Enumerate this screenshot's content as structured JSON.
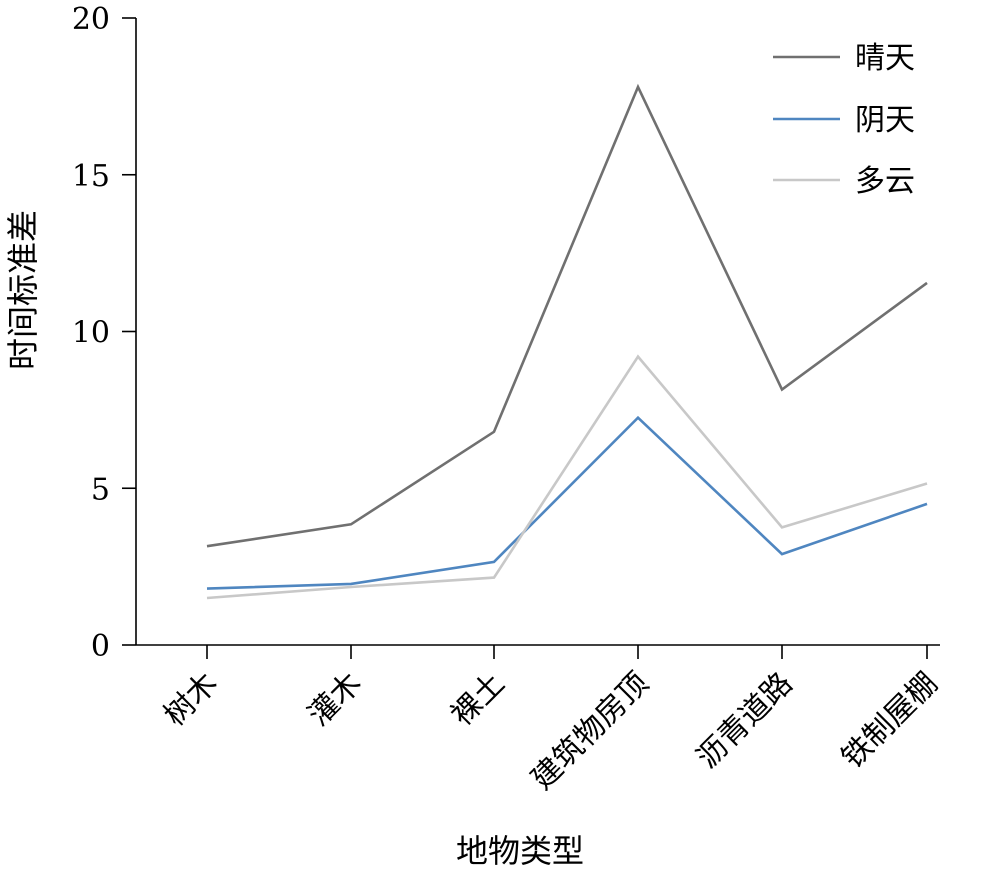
{
  "chart_data": {
    "type": "line",
    "xlabel": "地物类型",
    "ylabel": "时间标准差",
    "ylim": [
      0,
      20
    ],
    "yticks": [
      0,
      5,
      10,
      15,
      20
    ],
    "categories": [
      "树木",
      "灌木",
      "裸土",
      "建筑物房顶",
      "沥青道路",
      "铁制屋棚"
    ],
    "legend_position": "top-right",
    "grid": false,
    "series": [
      {
        "name": "晴天",
        "color": "#707070",
        "values": [
          3.15,
          3.85,
          6.8,
          17.8,
          8.15,
          11.55
        ]
      },
      {
        "name": "阴天",
        "color": "#4f86c0",
        "values": [
          1.8,
          1.95,
          2.65,
          7.25,
          2.9,
          4.5
        ]
      },
      {
        "name": "多云",
        "color": "#c8c8c8",
        "values": [
          1.5,
          1.85,
          2.15,
          9.2,
          3.75,
          5.15
        ]
      }
    ]
  }
}
